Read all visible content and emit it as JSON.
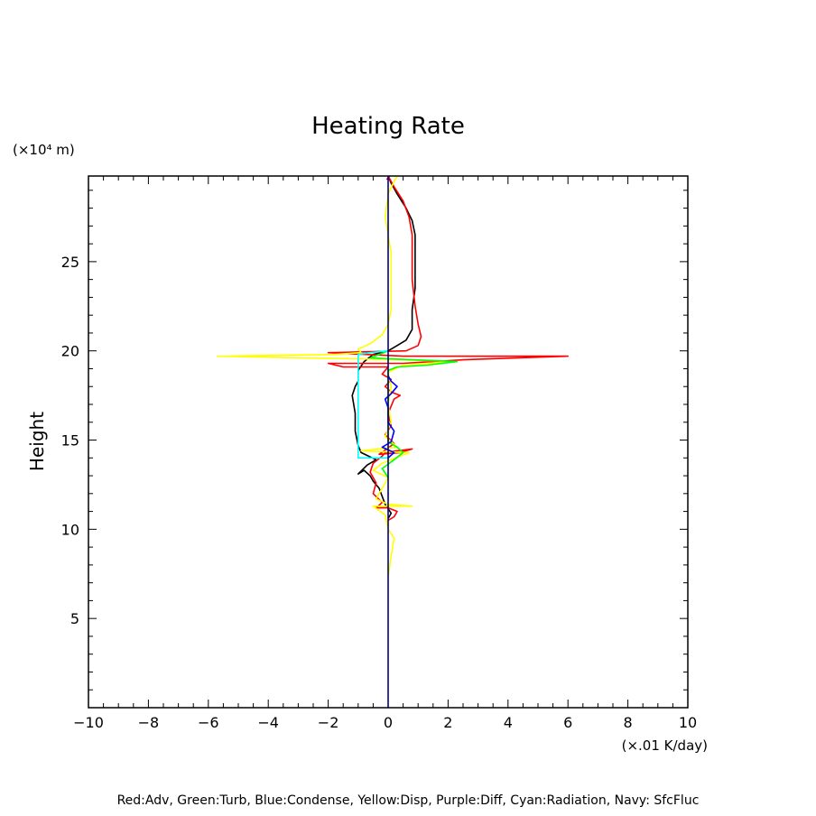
{
  "chart_data": {
    "type": "line",
    "title": "Heating Rate",
    "ylabel": "Height",
    "y_unit": "(×10⁴ m)",
    "x_unit": "(×.01 K/day)",
    "xlim": [
      -10,
      10
    ],
    "ylim": [
      0,
      29.8
    ],
    "x_ticks": [
      -10,
      -8,
      -6,
      -4,
      -2,
      0,
      2,
      4,
      6,
      8,
      10
    ],
    "x_tick_labels": [
      "−10",
      "−8",
      "−6",
      "−4",
      "−2",
      "0",
      "2",
      "4",
      "6",
      "8",
      "10"
    ],
    "y_ticks": [
      5,
      10,
      15,
      20,
      25
    ],
    "y_tick_labels": [
      "5",
      "10",
      "15",
      "20",
      "25"
    ],
    "legend_text": "Red:Adv, Green:Turb, Blue:Condense, Yellow:Disp, Purple:Diff, Cyan:Radiation, Navy: SfcFluc",
    "series": [
      {
        "color": "#000000",
        "points": [
          [
            0,
            10.6
          ],
          [
            0.1,
            10.9
          ],
          [
            -0.1,
            11.4
          ],
          [
            -0.3,
            12.3
          ],
          [
            -0.5,
            12.7
          ],
          [
            -0.6,
            13.0
          ],
          [
            -0.8,
            13.3
          ],
          [
            -1.0,
            13.1
          ],
          [
            -0.7,
            13.6
          ],
          [
            -0.4,
            13.9
          ],
          [
            -0.9,
            14.3
          ],
          [
            -1.0,
            14.7
          ],
          [
            -1.1,
            15.5
          ],
          [
            -1.1,
            16.5
          ],
          [
            -1.2,
            17.5
          ],
          [
            -1.1,
            18.0
          ],
          [
            -1.0,
            18.3
          ],
          [
            -1.0,
            18.9
          ],
          [
            -0.8,
            19.4
          ],
          [
            -0.5,
            19.8
          ],
          [
            0,
            20.0
          ],
          [
            0.3,
            20.3
          ],
          [
            0.6,
            20.6
          ],
          [
            0.8,
            21.2
          ],
          [
            0.8,
            22.3
          ],
          [
            0.9,
            23.5
          ],
          [
            0.9,
            25.0
          ],
          [
            0.9,
            26.5
          ],
          [
            0.8,
            27.3
          ],
          [
            0.6,
            28.0
          ],
          [
            0.3,
            28.8
          ],
          [
            0.1,
            29.4
          ],
          [
            0,
            29.8
          ]
        ]
      },
      {
        "color": "#ff0000",
        "points": [
          [
            0,
            10.5
          ],
          [
            0.2,
            10.7
          ],
          [
            0.3,
            11.0
          ],
          [
            0,
            11.2
          ],
          [
            -0.4,
            11.2
          ],
          [
            -0.2,
            11.5
          ],
          [
            -0.5,
            12.0
          ],
          [
            -0.4,
            12.6
          ],
          [
            -0.6,
            13.2
          ],
          [
            -0.5,
            13.7
          ],
          [
            -0.2,
            14.1
          ],
          [
            -0.1,
            14.3
          ],
          [
            0.3,
            14.4
          ],
          [
            0.8,
            14.5
          ],
          [
            0.4,
            14.3
          ],
          [
            -0.3,
            14.2
          ],
          [
            0.2,
            14.8
          ],
          [
            -0.1,
            15.3
          ],
          [
            0.1,
            15.8
          ],
          [
            0,
            16.5
          ],
          [
            0.2,
            17.3
          ],
          [
            0.4,
            17.5
          ],
          [
            0.1,
            17.7
          ],
          [
            -0.1,
            18.0
          ],
          [
            0.1,
            18.4
          ],
          [
            -0.2,
            18.7
          ],
          [
            0,
            19.1
          ],
          [
            -1.5,
            19.1
          ],
          [
            -2.0,
            19.3
          ],
          [
            0.5,
            19.3
          ],
          [
            2.5,
            19.5
          ],
          [
            6.0,
            19.7
          ],
          [
            0.5,
            19.7
          ],
          [
            -2.0,
            19.9
          ],
          [
            0.6,
            20.0
          ],
          [
            1.0,
            20.3
          ],
          [
            1.1,
            20.8
          ],
          [
            1.0,
            21.5
          ],
          [
            0.9,
            22.5
          ],
          [
            0.8,
            24.0
          ],
          [
            0.8,
            25.5
          ],
          [
            0.8,
            26.5
          ],
          [
            0.7,
            27.5
          ],
          [
            0.5,
            28.4
          ],
          [
            0.2,
            29.2
          ],
          [
            0,
            29.8
          ]
        ]
      },
      {
        "color": "#ffff00",
        "points": [
          [
            0,
            7.3
          ],
          [
            0.1,
            8.5
          ],
          [
            0.2,
            9.5
          ],
          [
            0,
            10.0
          ],
          [
            -0.1,
            10.8
          ],
          [
            -0.5,
            11.3
          ],
          [
            0.8,
            11.3
          ],
          [
            0,
            11.4
          ],
          [
            -0.4,
            11.7
          ],
          [
            -0.2,
            12.3
          ],
          [
            0,
            12.9
          ],
          [
            -0.5,
            13.3
          ],
          [
            -0.2,
            13.7
          ],
          [
            0.4,
            14.1
          ],
          [
            0.7,
            14.3
          ],
          [
            -0.9,
            14.4
          ],
          [
            0.3,
            14.6
          ],
          [
            -0.1,
            15.2
          ],
          [
            0.1,
            16.0
          ],
          [
            0,
            17.0
          ],
          [
            0.1,
            18.0
          ],
          [
            0,
            18.8
          ],
          [
            0.5,
            19.2
          ],
          [
            2.2,
            19.4
          ],
          [
            0.5,
            19.5
          ],
          [
            -5.7,
            19.7
          ],
          [
            -1.8,
            19.8
          ],
          [
            -0.9,
            19.9
          ],
          [
            -1.0,
            20.1
          ],
          [
            -0.6,
            20.4
          ],
          [
            -0.2,
            20.9
          ],
          [
            0,
            21.5
          ],
          [
            0.1,
            22.3
          ],
          [
            0.1,
            24.0
          ],
          [
            0.1,
            25.5
          ],
          [
            0,
            26.5
          ],
          [
            -0.1,
            27.5
          ],
          [
            0,
            28.8
          ],
          [
            0.2,
            29.5
          ],
          [
            0.3,
            29.8
          ]
        ]
      },
      {
        "color": "#00ff00",
        "points": [
          [
            0,
            12.9
          ],
          [
            -0.2,
            13.4
          ],
          [
            0.2,
            13.9
          ],
          [
            0.5,
            14.3
          ],
          [
            0.3,
            14.6
          ],
          [
            0,
            14.9
          ],
          [
            0,
            18.9
          ],
          [
            0.3,
            19.1
          ],
          [
            1.3,
            19.2
          ],
          [
            2.3,
            19.4
          ],
          [
            0.8,
            19.5
          ],
          [
            -0.6,
            19.6
          ],
          [
            -0.3,
            19.8
          ],
          [
            0,
            20.0
          ]
        ]
      },
      {
        "color": "#0000ff",
        "points": [
          [
            0,
            14.0
          ],
          [
            0.2,
            14.3
          ],
          [
            -0.2,
            14.6
          ],
          [
            0.1,
            14.9
          ],
          [
            0.2,
            15.5
          ],
          [
            0,
            16.0
          ],
          [
            0,
            16.8
          ],
          [
            -0.1,
            17.3
          ],
          [
            0.1,
            17.6
          ],
          [
            0.2,
            17.8
          ],
          [
            0.3,
            18.0
          ],
          [
            0.1,
            18.3
          ],
          [
            0,
            18.6
          ]
        ]
      },
      {
        "color": "#00ffff",
        "points": [
          [
            0,
            14.0
          ],
          [
            -1.0,
            14.0
          ],
          [
            -1.0,
            19.8
          ],
          [
            -0.6,
            19.9
          ],
          [
            0,
            20.0
          ]
        ]
      },
      {
        "color": "#aa00aa",
        "points": [
          [
            -0.05,
            29.6
          ],
          [
            0.05,
            29.8
          ]
        ]
      },
      {
        "color": "#000080",
        "points": [
          [
            0,
            0
          ],
          [
            0,
            29.8
          ]
        ]
      }
    ]
  }
}
